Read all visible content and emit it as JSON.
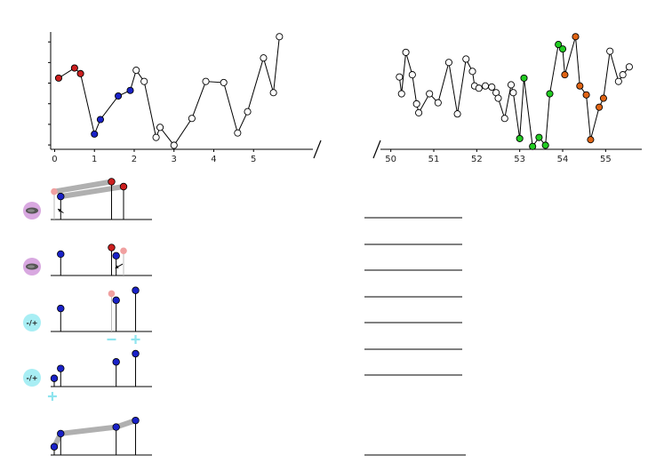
{
  "colors": {
    "red": "#cc1f1f",
    "blue": "#1a22c8",
    "green": "#22cc22",
    "orange": "#e06414",
    "open": "#ffffff",
    "pink_faded": "#f0a0a0",
    "gray_band": "#b0b0b0",
    "purple_badge": "#d8a8e0",
    "cyan_badge": "#a8eef4",
    "cyan_sign": "#8ee4ee"
  },
  "chart_data": [
    {
      "type": "line",
      "title": "",
      "xlabel": "",
      "ylabel": "",
      "xlim": [
        -0.1,
        6.0
      ],
      "ylim": [
        0,
        10
      ],
      "xticks": [
        "0",
        "1",
        "2",
        "3",
        "4",
        "5"
      ],
      "points": [
        {
          "x": 0.1,
          "y": 6.2,
          "color": "red"
        },
        {
          "x": 0.5,
          "y": 7.1,
          "color": "red"
        },
        {
          "x": 0.65,
          "y": 6.6,
          "color": "red"
        },
        {
          "x": 1.0,
          "y": 1.2,
          "color": "blue"
        },
        {
          "x": 1.15,
          "y": 2.5,
          "color": "blue"
        },
        {
          "x": 1.6,
          "y": 4.6,
          "color": "blue"
        },
        {
          "x": 1.9,
          "y": 5.1,
          "color": "blue"
        },
        {
          "x": 2.05,
          "y": 6.9,
          "color": "open"
        },
        {
          "x": 2.25,
          "y": 5.9,
          "color": "open"
        },
        {
          "x": 2.55,
          "y": 0.9,
          "color": "open"
        },
        {
          "x": 2.65,
          "y": 1.8,
          "color": "open"
        },
        {
          "x": 3.0,
          "y": 0.2,
          "color": "open"
        },
        {
          "x": 3.45,
          "y": 2.6,
          "color": "open"
        },
        {
          "x": 3.8,
          "y": 5.9,
          "color": "open"
        },
        {
          "x": 4.25,
          "y": 5.8,
          "color": "open"
        },
        {
          "x": 4.6,
          "y": 1.3,
          "color": "open"
        },
        {
          "x": 4.85,
          "y": 3.2,
          "color": "open"
        },
        {
          "x": 5.25,
          "y": 8.0,
          "color": "open"
        },
        {
          "x": 5.5,
          "y": 4.9,
          "color": "open"
        },
        {
          "x": 5.65,
          "y": 9.9,
          "color": "open"
        }
      ]
    },
    {
      "type": "line",
      "title": "",
      "xlabel": "",
      "ylabel": "",
      "xlim": [
        49.8,
        55.8
      ],
      "ylim": [
        0,
        10
      ],
      "xticks": [
        "50",
        "51",
        "52",
        "53",
        "54",
        "55"
      ],
      "points": [
        {
          "x": 50.2,
          "y": 6.3,
          "color": "open"
        },
        {
          "x": 50.25,
          "y": 4.8,
          "color": "open"
        },
        {
          "x": 50.35,
          "y": 8.5,
          "color": "open"
        },
        {
          "x": 50.5,
          "y": 6.5,
          "color": "open"
        },
        {
          "x": 50.6,
          "y": 3.9,
          "color": "open"
        },
        {
          "x": 50.65,
          "y": 3.1,
          "color": "open"
        },
        {
          "x": 50.9,
          "y": 4.8,
          "color": "open"
        },
        {
          "x": 51.1,
          "y": 4.0,
          "color": "open"
        },
        {
          "x": 51.35,
          "y": 7.6,
          "color": "open"
        },
        {
          "x": 51.55,
          "y": 3.0,
          "color": "open"
        },
        {
          "x": 51.75,
          "y": 7.9,
          "color": "open"
        },
        {
          "x": 51.9,
          "y": 6.8,
          "color": "open"
        },
        {
          "x": 51.95,
          "y": 5.5,
          "color": "open"
        },
        {
          "x": 52.05,
          "y": 5.3,
          "color": "open"
        },
        {
          "x": 52.2,
          "y": 5.5,
          "color": "open"
        },
        {
          "x": 52.35,
          "y": 5.4,
          "color": "open"
        },
        {
          "x": 52.45,
          "y": 4.9,
          "color": "open"
        },
        {
          "x": 52.5,
          "y": 4.4,
          "color": "open"
        },
        {
          "x": 52.65,
          "y": 2.6,
          "color": "open"
        },
        {
          "x": 52.8,
          "y": 5.6,
          "color": "open"
        },
        {
          "x": 52.85,
          "y": 4.9,
          "color": "open"
        },
        {
          "x": 53.0,
          "y": 0.8,
          "color": "green"
        },
        {
          "x": 53.1,
          "y": 6.2,
          "color": "green"
        },
        {
          "x": 53.3,
          "y": 0.1,
          "color": "green"
        },
        {
          "x": 53.45,
          "y": 0.9,
          "color": "green"
        },
        {
          "x": 53.6,
          "y": 0.2,
          "color": "green"
        },
        {
          "x": 53.7,
          "y": 4.8,
          "color": "green"
        },
        {
          "x": 53.9,
          "y": 9.2,
          "color": "green"
        },
        {
          "x": 54.0,
          "y": 8.8,
          "color": "green"
        },
        {
          "x": 54.05,
          "y": 6.5,
          "color": "orange"
        },
        {
          "x": 54.3,
          "y": 9.9,
          "color": "orange"
        },
        {
          "x": 54.4,
          "y": 5.5,
          "color": "orange"
        },
        {
          "x": 54.55,
          "y": 4.7,
          "color": "orange"
        },
        {
          "x": 54.65,
          "y": 0.7,
          "color": "orange"
        },
        {
          "x": 54.85,
          "y": 3.6,
          "color": "orange"
        },
        {
          "x": 54.95,
          "y": 4.4,
          "color": "orange"
        },
        {
          "x": 55.1,
          "y": 8.6,
          "color": "open"
        },
        {
          "x": 55.3,
          "y": 5.9,
          "color": "open"
        },
        {
          "x": 55.4,
          "y": 6.5,
          "color": "open"
        },
        {
          "x": 55.55,
          "y": 7.2,
          "color": "open"
        }
      ]
    }
  ],
  "panels": [
    {
      "badge": "texture",
      "badge_color": "purple",
      "band": [
        [
          0,
          2
        ],
        [
          1,
          3
        ]
      ],
      "arrow": "up-left",
      "lollipops": [
        {
          "pos": 0.0,
          "val": 0.85,
          "color": "pink_faded"
        },
        {
          "pos": 0.07,
          "val": 0.7,
          "color": "blue"
        },
        {
          "pos": 0.62,
          "val": 1.15,
          "color": "red"
        },
        {
          "pos": 0.75,
          "val": 1.0,
          "color": "red"
        }
      ]
    },
    {
      "badge": "texture",
      "badge_color": "purple",
      "arrow": "down-left",
      "lollipops": [
        {
          "pos": 0.07,
          "val": 0.65,
          "color": "blue"
        },
        {
          "pos": 0.62,
          "val": 0.85,
          "color": "red"
        },
        {
          "pos": 0.67,
          "val": 0.6,
          "color": "blue"
        },
        {
          "pos": 0.75,
          "val": 0.75,
          "color": "pink_faded"
        }
      ]
    },
    {
      "badge": "-/+",
      "badge_color": "cyan",
      "signs": [
        {
          "pos": 0.62,
          "sign": "−"
        },
        {
          "pos": 0.88,
          "sign": "+"
        }
      ],
      "lollipops": [
        {
          "pos": 0.07,
          "val": 0.7,
          "color": "blue"
        },
        {
          "pos": 0.62,
          "val": 1.15,
          "color": "pink_faded"
        },
        {
          "pos": 0.67,
          "val": 0.95,
          "color": "blue"
        },
        {
          "pos": 0.88,
          "val": 1.25,
          "color": "blue"
        }
      ]
    },
    {
      "badge": "-/+",
      "badge_color": "cyan",
      "signs": [
        {
          "pos": -0.02,
          "sign": "+",
          "below": true
        }
      ],
      "lollipops": [
        {
          "pos": 0.0,
          "val": 0.25,
          "color": "blue"
        },
        {
          "pos": 0.07,
          "val": 0.55,
          "color": "blue"
        },
        {
          "pos": 0.67,
          "val": 0.75,
          "color": "blue"
        },
        {
          "pos": 0.88,
          "val": 1.0,
          "color": "blue"
        }
      ]
    },
    {
      "badge": "",
      "band": [
        [
          0,
          1
        ],
        [
          1,
          2
        ],
        [
          2,
          3
        ]
      ],
      "lollipops": [
        {
          "pos": 0.0,
          "val": 0.25,
          "color": "blue"
        },
        {
          "pos": 0.07,
          "val": 0.65,
          "color": "blue"
        },
        {
          "pos": 0.67,
          "val": 0.85,
          "color": "blue"
        },
        {
          "pos": 0.88,
          "val": 1.05,
          "color": "blue"
        }
      ]
    }
  ],
  "right_rows": 8
}
